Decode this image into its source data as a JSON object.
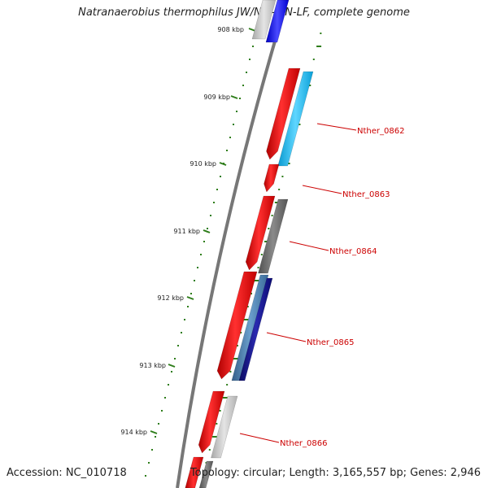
{
  "title": "Natranaerobius thermophilus JW/NM-WN-LF, complete genome",
  "footer": {
    "accession": "Accession: NC_010718",
    "summary": "Topology: circular; Length: 3,165,557 bp; Genes: 2,946"
  },
  "ticks": [
    "908 kbp",
    "909 kbp",
    "910 kbp",
    "911 kbp",
    "912 kbp",
    "913 kbp",
    "914 kbp"
  ],
  "genes": [
    "Nther_0862",
    "Nther_0863",
    "Nther_0864",
    "Nther_0865",
    "Nther_0866"
  ],
  "colors": {
    "forward": "#ff0000",
    "backbone": "#777777",
    "tick": "#2e7d1a",
    "label": "#cc0000",
    "light_blue": "#22bff2",
    "dark_blue": "#1a1a8c",
    "steel_blue": "#4a7fb0",
    "grey": "#707070",
    "light_grey": "#c8c8c8",
    "blue": "#1515ff"
  }
}
